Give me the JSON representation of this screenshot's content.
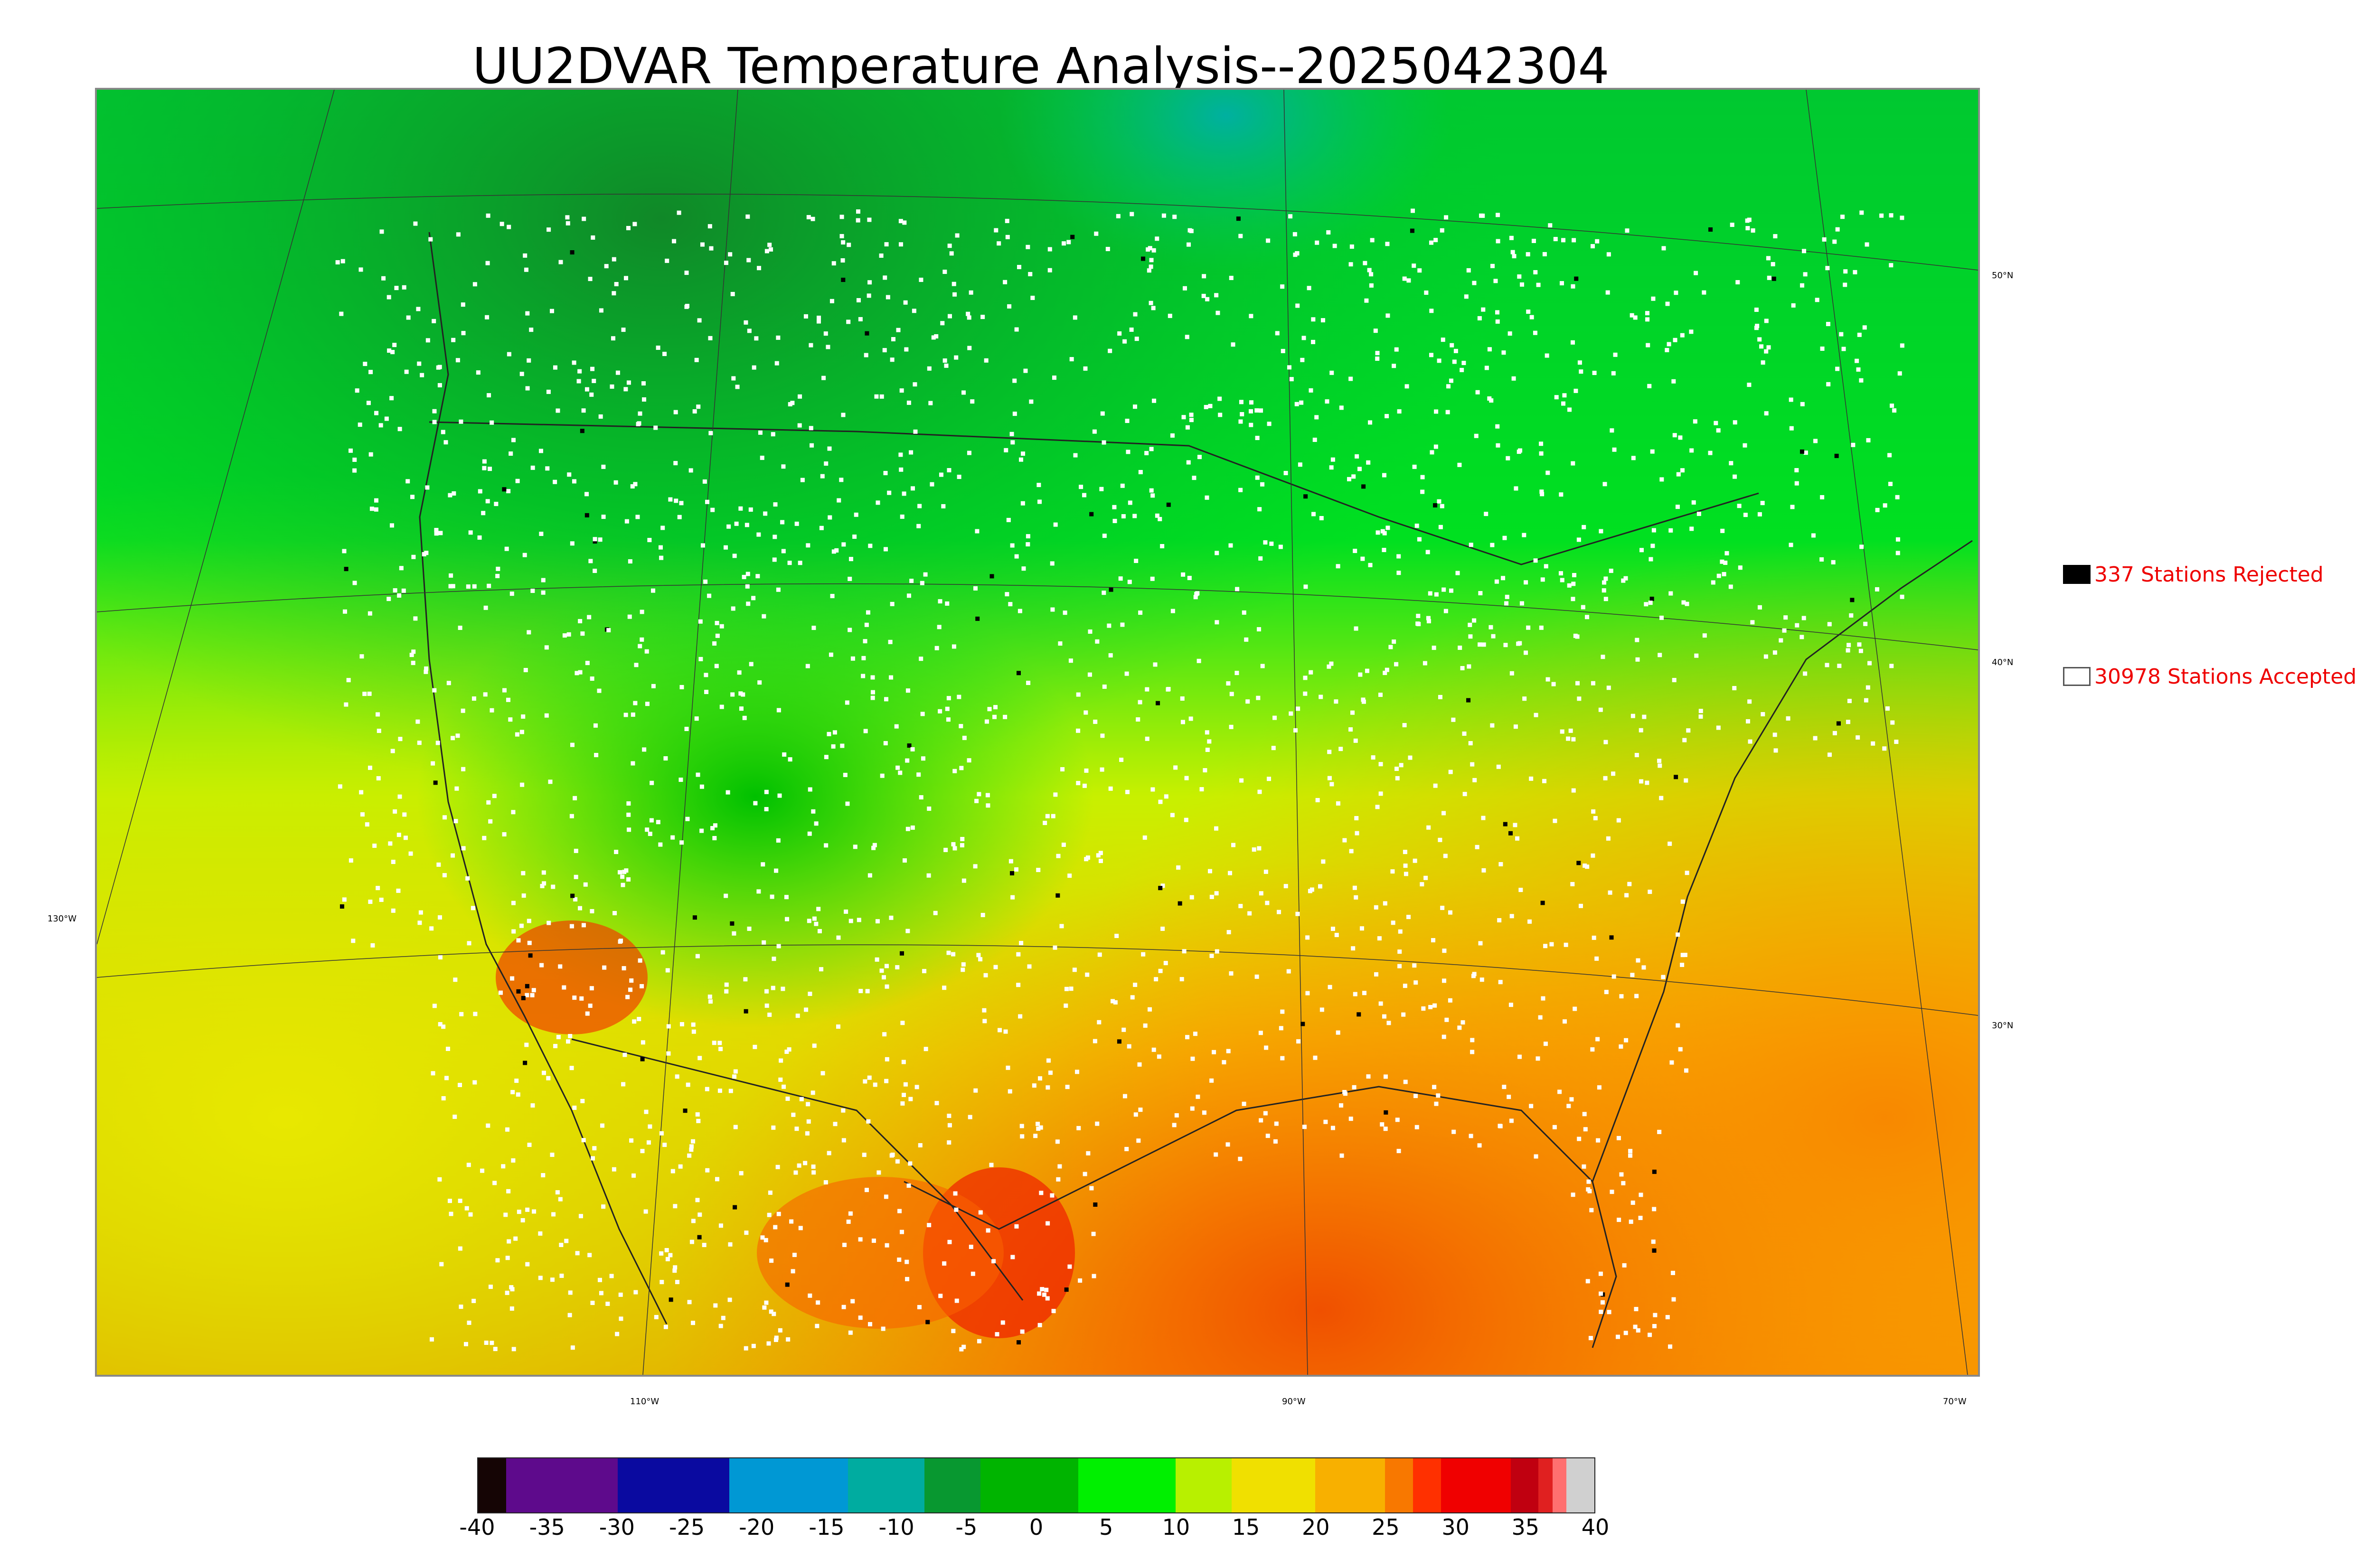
{
  "title": "UU2DVAR Temperature Analysis--2025042304",
  "map": {
    "lat_labels": [
      "50°N",
      "40°N",
      "30°N"
    ],
    "lon_labels": [
      "110°W",
      "90°W",
      "70°W"
    ],
    "left_label": "130°W"
  },
  "legend": {
    "rejected": {
      "label": "337 Stations Rejected",
      "count": 337,
      "color": "#000000"
    },
    "accepted": {
      "label": "30978 Stations Accepted",
      "count": 30978,
      "color": "#ffffff"
    },
    "text_color": "#ee0000"
  },
  "colorbar": {
    "ticks": [
      "-40",
      "-35",
      "-30",
      "-25",
      "-20",
      "-15",
      "-10",
      "-5",
      "0",
      "5",
      "10",
      "15",
      "20",
      "25",
      "30",
      "35",
      "40"
    ],
    "min": -40,
    "max": 40,
    "segments": [
      {
        "from": -40,
        "to": -38,
        "color": "#150505"
      },
      {
        "from": -38,
        "to": -30,
        "color": "#5e0a8c"
      },
      {
        "from": -30,
        "to": -22,
        "color": "#0a0aa0"
      },
      {
        "from": -22,
        "to": -13.5,
        "color": "#0098d4"
      },
      {
        "from": -13.5,
        "to": -8,
        "color": "#00aca0"
      },
      {
        "from": -8,
        "to": -4,
        "color": "#089830"
      },
      {
        "from": -4,
        "to": 3,
        "color": "#00b400"
      },
      {
        "from": 3,
        "to": 10,
        "color": "#00f000"
      },
      {
        "from": 10,
        "to": 14,
        "color": "#b8f000"
      },
      {
        "from": 14,
        "to": 20,
        "color": "#f0e000"
      },
      {
        "from": 20,
        "to": 25,
        "color": "#f8b000"
      },
      {
        "from": 25,
        "to": 27,
        "color": "#f87800"
      },
      {
        "from": 27,
        "to": 29,
        "color": "#ff3000"
      },
      {
        "from": 29,
        "to": 34,
        "color": "#f00000"
      },
      {
        "from": 34,
        "to": 36,
        "color": "#c00010"
      },
      {
        "from": 36,
        "to": 37,
        "color": "#e02020"
      },
      {
        "from": 37,
        "to": 38,
        "color": "#ff7070"
      },
      {
        "from": 38,
        "to": 40,
        "color": "#d0d0d0"
      }
    ]
  },
  "colors": {
    "cold_canada": "#00b830",
    "cool": "#00e820",
    "mild": "#c8f000",
    "warm": "#f8c800",
    "hot_gulf": "#f88000",
    "very_hot": "#f02000",
    "station_accepted": "#ffffff",
    "station_rejected": "#000000"
  }
}
